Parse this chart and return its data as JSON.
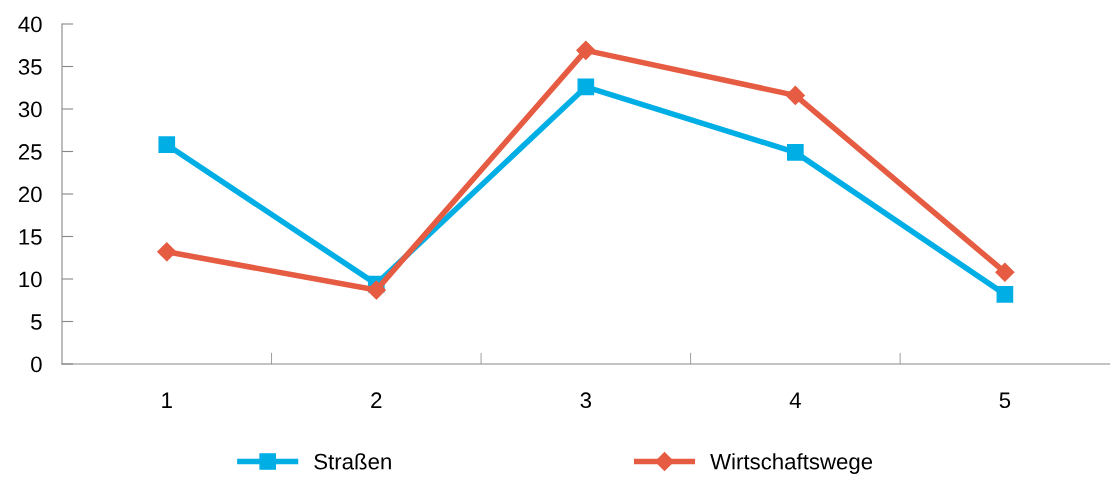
{
  "chart_data": {
    "type": "line",
    "categories": [
      "1",
      "2",
      "3",
      "4",
      "5"
    ],
    "series": [
      {
        "name": "Straßen",
        "color": "#00aee6",
        "marker": "square",
        "values": [
          25.8,
          9.4,
          32.6,
          24.9,
          8.2
        ]
      },
      {
        "name": "Wirtschaftswege",
        "color": "#e65c42",
        "marker": "diamond",
        "values": [
          13.2,
          8.7,
          36.9,
          31.6,
          10.8
        ]
      }
    ],
    "ylim": [
      0,
      40
    ],
    "yticks": [
      0,
      5,
      10,
      15,
      20,
      25,
      30,
      35,
      40
    ],
    "grid": false,
    "legend": "bottom"
  }
}
